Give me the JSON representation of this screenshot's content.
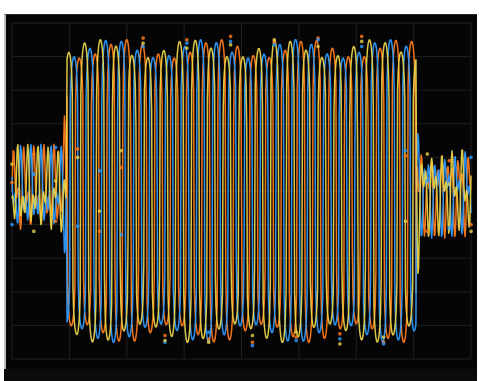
{
  "colors": {
    "background": "#050505",
    "grid": "#2b2b2b",
    "phase_a": "#ff7a1a",
    "phase_b": "#2e9bff",
    "phase_c": "#e8d24a"
  },
  "chart_data": {
    "type": "line",
    "title": "",
    "xlabel": "",
    "ylabel": "",
    "xlim": [
      0,
      1
    ],
    "ylim": [
      -1,
      1
    ],
    "grid": true,
    "x_gridlines": 8,
    "y_gridlines": 10,
    "burst_interval": [
      0.12,
      0.88
    ],
    "pre_burst_amplitude": 0.28,
    "burst_amplitude": 0.92,
    "post_burst_amplitude": 0.28,
    "series": [
      {
        "color": "#ff7a1a",
        "phase_deg": 0,
        "values": [
          0.05,
          0.22,
          -0.18,
          0.25,
          -0.24,
          0.14,
          0.91,
          -0.86,
          0.9,
          -0.88,
          0.92,
          -0.9,
          0.89,
          -0.87,
          0.91,
          -0.85,
          0.92,
          -0.9,
          0.21,
          -0.24,
          0.18,
          -0.2
        ]
      },
      {
        "color": "#2e9bff",
        "phase_deg": 120,
        "values": [
          -0.2,
          0.1,
          0.26,
          -0.21,
          0.12,
          -0.26,
          0.86,
          -0.9,
          0.88,
          -0.84,
          0.89,
          -0.92,
          0.87,
          -0.89,
          0.9,
          -0.88,
          0.86,
          -0.91,
          0.24,
          0.06,
          -0.22,
          0.2
        ]
      },
      {
        "color": "#e8d24a",
        "phase_deg": 240,
        "values": [
          0.16,
          -0.24,
          0.06,
          0.2,
          -0.12,
          0.24,
          0.88,
          -0.89,
          0.85,
          -0.9,
          0.87,
          -0.86,
          0.9,
          -0.84,
          0.86,
          -0.91,
          0.89,
          -0.87,
          -0.18,
          0.22,
          0.04,
          -0.24
        ]
      }
    ]
  }
}
